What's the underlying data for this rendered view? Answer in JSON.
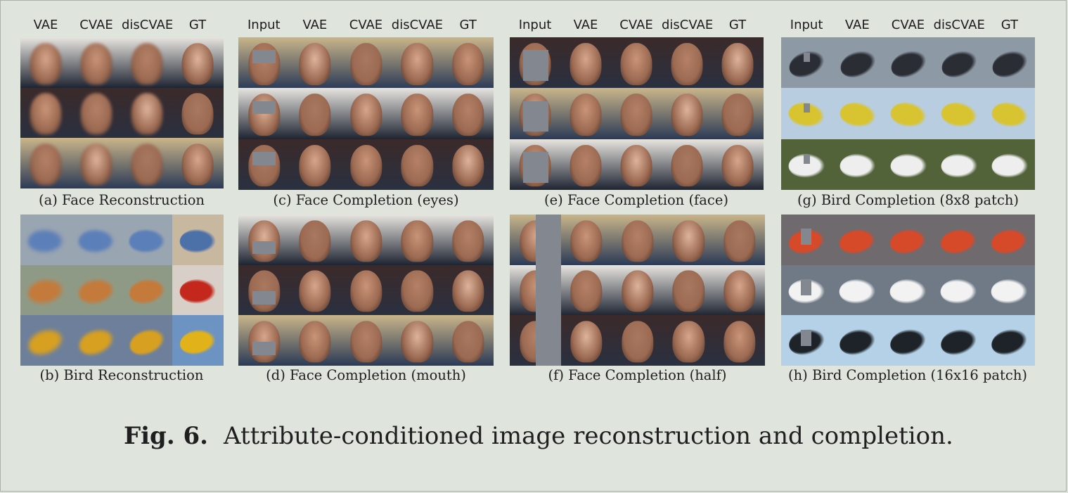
{
  "figure": {
    "label": "Fig. 6.",
    "caption": "Attribute-conditioned image reconstruction and completion."
  },
  "panels": [
    {
      "id": "a",
      "caption": "(a) Face Reconstruction",
      "columns": [
        "VAE",
        "CVAE",
        "disCVAE",
        "GT"
      ],
      "kind": "face",
      "mask": "none"
    },
    {
      "id": "b",
      "caption": "(b) Bird Reconstruction",
      "columns": [],
      "kind": "bird",
      "mask": "none"
    },
    {
      "id": "c",
      "caption": "(c) Face Completion (eyes)",
      "columns": [
        "Input",
        "VAE",
        "CVAE",
        "disCVAE",
        "GT"
      ],
      "kind": "face",
      "mask": "eyes"
    },
    {
      "id": "d",
      "caption": "(d) Face Completion (mouth)",
      "columns": [],
      "kind": "face",
      "mask": "mouth"
    },
    {
      "id": "e",
      "caption": "(e) Face Completion (face)",
      "columns": [
        "Input",
        "VAE",
        "CVAE",
        "disCVAE",
        "GT"
      ],
      "kind": "face",
      "mask": "face"
    },
    {
      "id": "f",
      "caption": "(f) Face Completion (half)",
      "columns": [],
      "kind": "face",
      "mask": "half"
    },
    {
      "id": "g",
      "caption": "(g) Bird Completion (8x8 patch)",
      "columns": [
        "Input",
        "VAE",
        "CVAE",
        "disCVAE",
        "GT"
      ],
      "kind": "bird",
      "mask": "patch8"
    },
    {
      "id": "h",
      "caption": "(h) Bird Completion (16x16 patch)",
      "columns": [],
      "kind": "bird",
      "mask": "patch16"
    }
  ],
  "colors": {
    "background": "#dfe4dc",
    "mask_gray": "#828790",
    "bird_sky": "#8c9aa8",
    "bird_pale": "#b9cbe0",
    "bird_green": "#5b6b3a"
  }
}
